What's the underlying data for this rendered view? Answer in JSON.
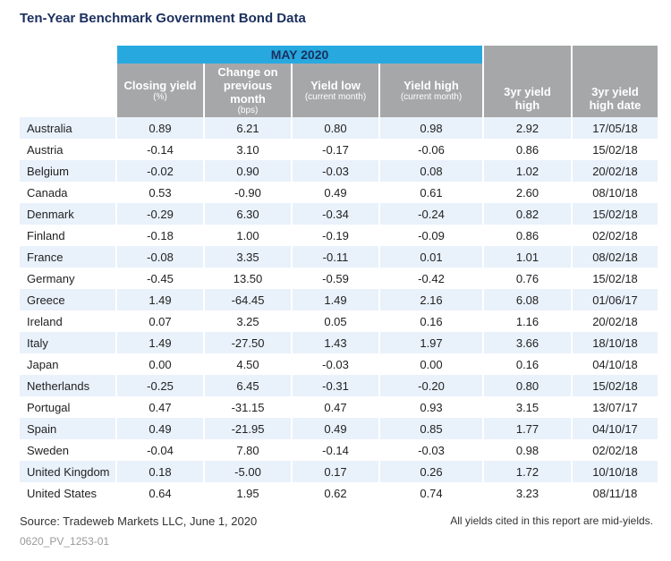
{
  "title": "Ten-Year Benchmark Government Bond Data",
  "month_header": "MAY 2020",
  "headers": {
    "closing_yield": "Closing yield",
    "closing_yield_sub": "(%)",
    "change": "Change on previous month",
    "change_sub": "(bps)",
    "yield_low": "Yield low",
    "yield_low_sub": "(current month)",
    "yield_high": "Yield high",
    "yield_high_sub": "(current month)",
    "yr3_high": "3yr yield high",
    "yr3_high_date": "3yr yield high date"
  },
  "rows": [
    {
      "country": "Australia",
      "closing": "0.89",
      "change": "6.21",
      "low": "0.80",
      "high": "0.98",
      "yr3": "2.92",
      "date": "17/05/18"
    },
    {
      "country": "Austria",
      "closing": "-0.14",
      "change": "3.10",
      "low": "-0.17",
      "high": "-0.06",
      "yr3": "0.86",
      "date": "15/02/18"
    },
    {
      "country": "Belgium",
      "closing": "-0.02",
      "change": "0.90",
      "low": "-0.03",
      "high": "0.08",
      "yr3": "1.02",
      "date": "20/02/18"
    },
    {
      "country": "Canada",
      "closing": "0.53",
      "change": "-0.90",
      "low": "0.49",
      "high": "0.61",
      "yr3": "2.60",
      "date": "08/10/18"
    },
    {
      "country": "Denmark",
      "closing": "-0.29",
      "change": "6.30",
      "low": "-0.34",
      "high": "-0.24",
      "yr3": "0.82",
      "date": "15/02/18"
    },
    {
      "country": "Finland",
      "closing": "-0.18",
      "change": "1.00",
      "low": "-0.19",
      "high": "-0.09",
      "yr3": "0.86",
      "date": "02/02/18"
    },
    {
      "country": "France",
      "closing": "-0.08",
      "change": "3.35",
      "low": "-0.11",
      "high": "0.01",
      "yr3": "1.01",
      "date": "08/02/18"
    },
    {
      "country": "Germany",
      "closing": "-0.45",
      "change": "13.50",
      "low": "-0.59",
      "high": "-0.42",
      "yr3": "0.76",
      "date": "15/02/18"
    },
    {
      "country": "Greece",
      "closing": "1.49",
      "change": "-64.45",
      "low": "1.49",
      "high": "2.16",
      "yr3": "6.08",
      "date": "01/06/17"
    },
    {
      "country": "Ireland",
      "closing": "0.07",
      "change": "3.25",
      "low": "0.05",
      "high": "0.16",
      "yr3": "1.16",
      "date": "20/02/18"
    },
    {
      "country": "Italy",
      "closing": "1.49",
      "change": "-27.50",
      "low": "1.43",
      "high": "1.97",
      "yr3": "3.66",
      "date": "18/10/18"
    },
    {
      "country": "Japan",
      "closing": "0.00",
      "change": "4.50",
      "low": "-0.03",
      "high": "0.00",
      "yr3": "0.16",
      "date": "04/10/18"
    },
    {
      "country": "Netherlands",
      "closing": "-0.25",
      "change": "6.45",
      "low": "-0.31",
      "high": "-0.20",
      "yr3": "0.80",
      "date": "15/02/18"
    },
    {
      "country": "Portugal",
      "closing": "0.47",
      "change": "-31.15",
      "low": "0.47",
      "high": "0.93",
      "yr3": "3.15",
      "date": "13/07/17"
    },
    {
      "country": "Spain",
      "closing": "0.49",
      "change": "-21.95",
      "low": "0.49",
      "high": "0.85",
      "yr3": "1.77",
      "date": "04/10/17"
    },
    {
      "country": "Sweden",
      "closing": "-0.04",
      "change": "7.80",
      "low": "-0.14",
      "high": "-0.03",
      "yr3": "0.98",
      "date": "02/02/18"
    },
    {
      "country": "United Kingdom",
      "closing": "0.18",
      "change": "-5.00",
      "low": "0.17",
      "high": "0.26",
      "yr3": "1.72",
      "date": "10/10/18"
    },
    {
      "country": "United States",
      "closing": "0.64",
      "change": "1.95",
      "low": "0.62",
      "high": "0.74",
      "yr3": "3.23",
      "date": "08/11/18"
    }
  ],
  "source": "Source: Tradeweb Markets LLC, June 1, 2020",
  "note": "All yields cited in this report are mid-yields.",
  "code": "0620_PV_1253-01",
  "colors": {
    "title": "#1b2f5e",
    "month_bar": "#27a9df",
    "header_bg": "#a6a7a9",
    "row_band": "#e9f1fb"
  }
}
